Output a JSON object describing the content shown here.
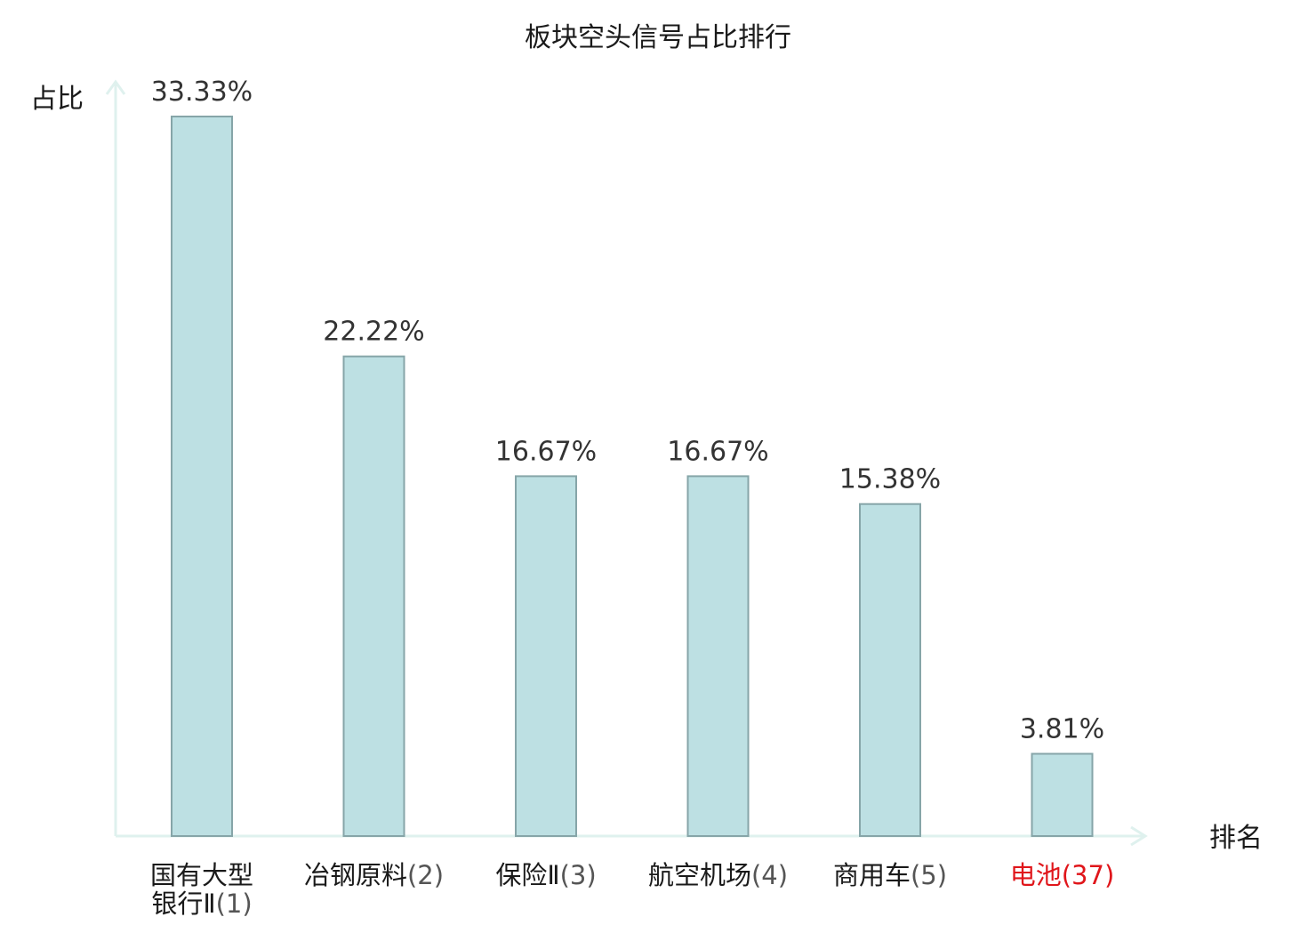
{
  "chart_data": {
    "type": "bar",
    "title": "板块空头信号占比排行",
    "xlabel": "排名",
    "ylabel": "占比",
    "categories": [
      {
        "lines": [
          {
            "name": "国有大型",
            "rank": ""
          },
          {
            "name": "银行Ⅱ",
            "rank": "(1)"
          }
        ],
        "highlight": false
      },
      {
        "lines": [
          {
            "name": "冶钢原料",
            "rank": "(2)"
          }
        ],
        "highlight": false
      },
      {
        "lines": [
          {
            "name": "保险Ⅱ",
            "rank": "(3)"
          }
        ],
        "highlight": false
      },
      {
        "lines": [
          {
            "name": "航空机场",
            "rank": "(4)"
          }
        ],
        "highlight": false
      },
      {
        "lines": [
          {
            "name": "商用车",
            "rank": "(5)"
          }
        ],
        "highlight": false
      },
      {
        "lines": [
          {
            "name": "电池",
            "rank": "(37)"
          }
        ],
        "highlight": true
      }
    ],
    "values": [
      33.33,
      22.22,
      16.67,
      16.67,
      15.38,
      3.81
    ],
    "value_labels": [
      "33.33%",
      "22.22%",
      "16.67%",
      "16.67%",
      "15.38%",
      "3.81%"
    ],
    "ylim": [
      0,
      35
    ],
    "grid": false,
    "legend": "none",
    "colors": {
      "bar_fill": "#bde0e3",
      "bar_stroke": "#86a5a8",
      "axis": "#dff1ee",
      "category_name": "#1a1a1a",
      "category_rank": "#555555",
      "highlight": "#e0161b"
    }
  }
}
